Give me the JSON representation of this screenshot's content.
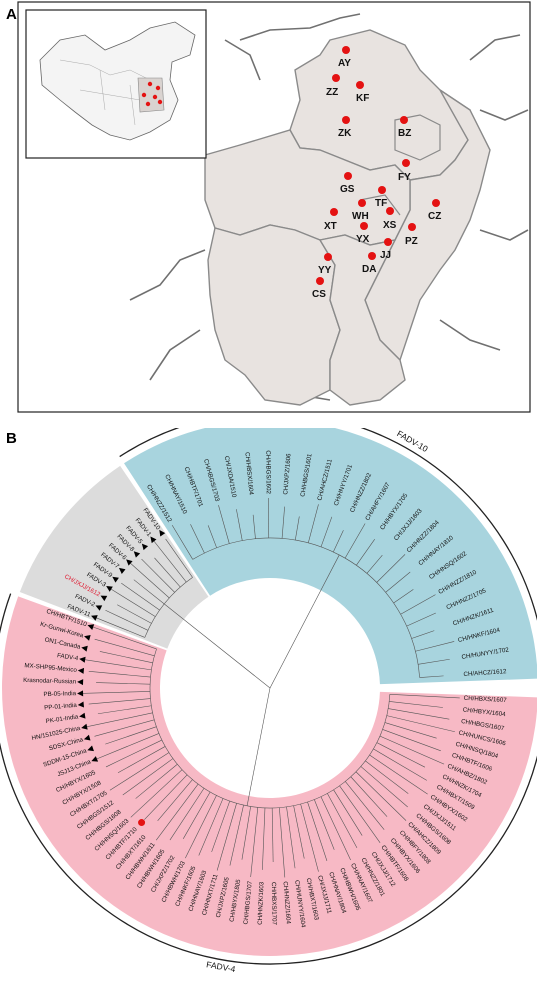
{
  "panels": {
    "a_label": "A",
    "b_label": "B"
  },
  "colors": {
    "province_fill": "#e8e3e0",
    "province_border": "#8a8a8a",
    "dot": "#e41212",
    "fadv10_bg": "#a8d4de",
    "fadv4_bg": "#f7b9c5",
    "gray_bg": "#dcdcdc",
    "highlight_text": "#e0142b"
  },
  "map": {
    "cities": [
      "AY",
      "ZZ",
      "KF",
      "ZK",
      "BZ",
      "FY",
      "GS",
      "TF",
      "WH",
      "XS",
      "CZ",
      "XT",
      "YX",
      "JJ",
      "PZ",
      "YY",
      "DA",
      "CS"
    ]
  },
  "tree": {
    "clade_labels": {
      "fadv10": "FADV-10",
      "fadv4": "FADV-4"
    },
    "leaves_fadv10": [
      "CH/HNZZ/1512",
      "CH/HNAY/1510",
      "CH/HBTF/1701",
      "CH/HBGS/1703",
      "CH/JXDA/1510",
      "CH/HBSX/1604",
      "CH/HBGS/1602",
      "CH/JXPZ/1606",
      "CH/HBGS/1601",
      "CH/AHCZ/1511",
      "CH/HNYY/1701",
      "CH/HNZZ/1802",
      "CH/AHFY/1607",
      "CH/HBYX/1705",
      "CH/JXJJ/1603",
      "CH/HNZZ/1804",
      "CH/HNAY/1810",
      "CH/HNSQ/1602",
      "CH/HNZZ/1810",
      "CH/HNZZ/1705",
      "CH/HNZK/1611",
      "CH/HNKF/1604",
      "CH/HUNYY/1702",
      "CH/AHCZ/1612"
    ],
    "leaves_gray": [
      "FADV-10",
      "FADV-1",
      "FADV-5",
      "FADV-8",
      "FADV-6",
      "FADV-7",
      "FADV-9",
      "FADV-3",
      "CH/JXJJ/1612",
      "FADV-2",
      "FADV-11"
    ],
    "highlight_leaf": "CH/JXJJ/1612",
    "leaves_fadv4_ref": [
      "CH/HBTF/1510",
      "Kr-Gunwi-Korea",
      "ON1-Canada",
      "FADV-4",
      "MX-SHP95-Mexico",
      "Krasnodar-Russian",
      "PB-05-India",
      "PP-01-India",
      "PK-01-India",
      "HN/151025-China",
      "SDSX-China",
      "SDDM-15-China",
      "JSJ13-China"
    ],
    "leaves_fadv4_cn": [
      "CH/HBYX/1605",
      "CH/HBYX/1508",
      "CH/HBXT/1705",
      "CH/HBGS/1512",
      "CH/HBGS/1608",
      "CH/HNSQ/1603",
      "CH/HBTF/1710",
      "CH/HBXT/1610",
      "CH/HBWH/1611",
      "CH/HBWH/1605",
      "CH/JXPZ/1702",
      "CH/HBWH/1703",
      "CH/HNKF/1605",
      "CH/HNAY/1603",
      "CH/HNXT/1711",
      "CH/JXPZ/1605",
      "CH/HBYX/1805",
      "CH/HBGS/1707",
      "CH/HNZK/1603",
      "CH/HBXS/1707",
      "CH/HNZZ/1604",
      "CH/HUNYY/1604",
      "CH/HBXT/1603",
      "CH/JXJJ/1711",
      "CH/HNAY/1804",
      "CH/HBWH/1605",
      "CH/HNAY/1607",
      "CH/HNZZ/1801",
      "CH/JXJJ/1712",
      "CH/HBTF/1608",
      "CH/HBYX/1606",
      "CH/HBFY/1808",
      "CH/AHCZ/1809",
      "CH/HBGS/1608",
      "CH/JXJJ/1511",
      "CH/HBYX/1602",
      "CH/HBXT/1509",
      "CH/HNZK/1704",
      "CH/AHBZ/1802",
      "CH/HBTF/1606",
      "CH/HNSQ/1804",
      "CH/HUNCS/1606",
      "CH/HBGS/1607",
      "CH/HBYX/1604",
      "CH/HBXS/1607"
    ]
  }
}
